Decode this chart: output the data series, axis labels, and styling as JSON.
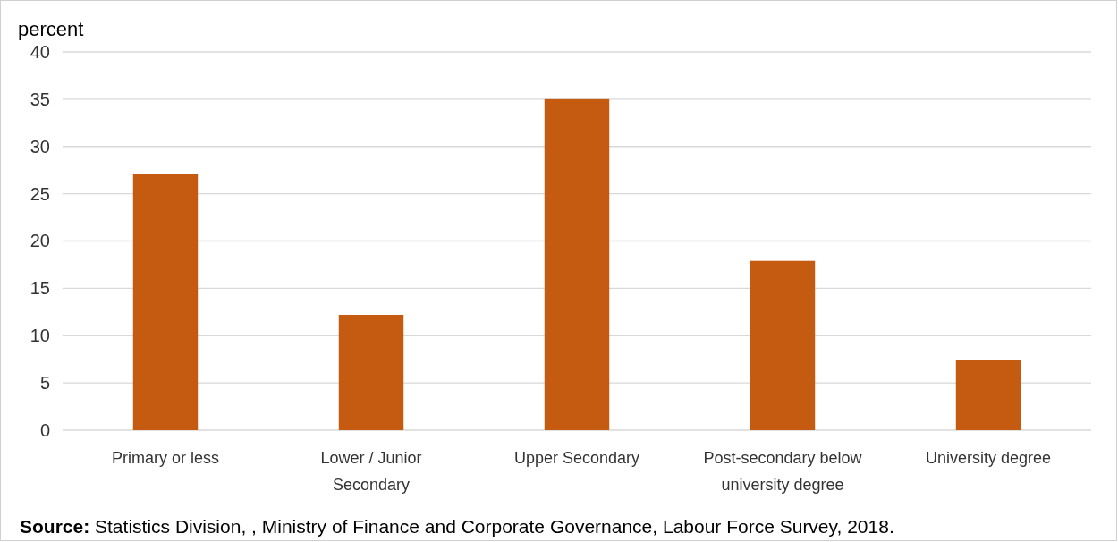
{
  "chart_data": {
    "type": "bar",
    "ylabel": "percent",
    "categories": [
      "Primary or less",
      "Lower / Junior Secondary",
      "Upper Secondary",
      "Post-secondary below university degree",
      "University degree"
    ],
    "values": [
      27.1,
      12.2,
      35.0,
      17.9,
      7.4
    ],
    "color": "#c55a11",
    "ylim": [
      0,
      40
    ],
    "yticks": [
      0,
      5,
      10,
      15,
      20,
      25,
      30,
      35,
      40
    ],
    "grid": "y",
    "annotations": [
      "Source: Statistics Division, , Ministry of Finance and Corporate Governance, Labour Force Survey, 2018."
    ]
  }
}
